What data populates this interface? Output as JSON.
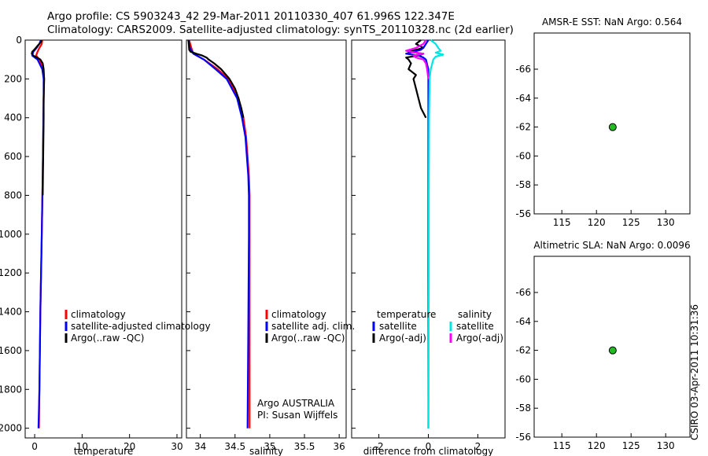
{
  "header": {
    "line1": "Argo profile: CS 5903243_42 29-Mar-2011 20110330_407 61.996S 122.347E",
    "line2": "Climatology: CARS2009. Satellite-adjusted climatology: synTS_20110328.nc (2d earlier)"
  },
  "footer": {
    "stamp": "CSIRO 03-Apr-2011 10:31:36"
  },
  "colors": {
    "climatology": "#ff0000",
    "satellite": "#0000ff",
    "argo": "#000000",
    "sal_satellite": "#00e5e5",
    "sal_argo": "#ff00ff",
    "float_marker": "#22bb22"
  },
  "chart_data": [
    {
      "id": "temperature",
      "type": "line",
      "xlabel": "temperature",
      "ylabel": "",
      "xlim": [
        -2,
        31
      ],
      "ylim": [
        2050,
        0
      ],
      "xticks": [
        0,
        10,
        20,
        30
      ],
      "yticks": [
        0,
        200,
        400,
        600,
        800,
        1000,
        1200,
        1400,
        1600,
        1800,
        2000
      ],
      "legend": {
        "placement": "lower-left",
        "entries": [
          {
            "label": "climatology",
            "color": "#ff0000"
          },
          {
            "label": "satellite-adjusted climatology",
            "color": "#0000ff"
          },
          {
            "label": "Argo(..raw -QC)",
            "color": "#000000"
          }
        ]
      },
      "series": [
        {
          "color": "#ff0000",
          "depth": [
            0,
            20,
            40,
            60,
            80,
            100,
            150,
            200,
            300,
            500,
            700,
            1000,
            1400,
            1800,
            2000
          ],
          "values": [
            1.6,
            1.5,
            1.0,
            0.6,
            0.3,
            1.0,
            1.8,
            2.0,
            1.9,
            1.8,
            1.7,
            1.5,
            1.2,
            1.0,
            0.9
          ]
        },
        {
          "color": "#0000ff",
          "depth": [
            0,
            20,
            40,
            60,
            80,
            100,
            150,
            200,
            300,
            500,
            700,
            1000,
            1400,
            1800,
            2000
          ],
          "values": [
            1.3,
            1.0,
            0.4,
            -0.3,
            -0.5,
            0.6,
            1.6,
            1.9,
            1.9,
            1.8,
            1.7,
            1.5,
            1.2,
            1.0,
            0.8
          ]
        },
        {
          "color": "#000000",
          "depth": [
            0,
            10,
            30,
            50,
            60,
            70,
            80,
            90,
            100,
            120,
            150,
            200,
            300,
            400,
            600,
            800
          ],
          "values": [
            1.5,
            1.3,
            0.6,
            -0.1,
            -0.5,
            -0.6,
            -0.3,
            0.5,
            1.2,
            1.7,
            1.9,
            2.0,
            1.9,
            1.9,
            1.8,
            1.7
          ]
        }
      ]
    },
    {
      "id": "salinity",
      "type": "line",
      "xlabel": "salinity",
      "ylabel": "",
      "xlim": [
        33.8,
        36.1
      ],
      "ylim": [
        2050,
        0
      ],
      "xticks": [
        34,
        34.5,
        35,
        35.5,
        36
      ],
      "xtick_labels": [
        "34",
        "34.5",
        "35",
        "35.5",
        "36"
      ],
      "legend": {
        "placement": "lower-left",
        "entries": [
          {
            "label": "climatology",
            "color": "#ff0000"
          },
          {
            "label": "satellite adj. clim.",
            "color": "#0000ff"
          },
          {
            "label": "Argo(..raw -QC)",
            "color": "#000000"
          }
        ]
      },
      "annotations": [
        "Argo AUSTRALIA",
        "PI: Susan Wijffels"
      ],
      "series": [
        {
          "color": "#ff0000",
          "depth": [
            0,
            40,
            70,
            100,
            150,
            200,
            300,
            400,
            500,
            600,
            700,
            800,
            1000,
            1500,
            2000
          ],
          "values": [
            33.84,
            33.87,
            33.9,
            34.05,
            34.25,
            34.4,
            34.55,
            34.62,
            34.66,
            34.68,
            34.7,
            34.71,
            34.71,
            34.71,
            34.71
          ]
        },
        {
          "color": "#0000ff",
          "depth": [
            0,
            40,
            70,
            100,
            150,
            200,
            300,
            400,
            500,
            600,
            700,
            800,
            1000,
            1500,
            2000
          ],
          "values": [
            33.83,
            33.85,
            33.9,
            34.05,
            34.22,
            34.38,
            34.53,
            34.6,
            34.65,
            34.67,
            34.69,
            34.7,
            34.7,
            34.69,
            34.68
          ]
        },
        {
          "color": "#000000",
          "depth": [
            0,
            50,
            60,
            70,
            80,
            90,
            100,
            120,
            150,
            200,
            250,
            300,
            350,
            400
          ],
          "values": [
            33.83,
            33.84,
            33.86,
            33.94,
            34.03,
            34.09,
            34.12,
            34.2,
            34.3,
            34.42,
            34.5,
            34.55,
            34.59,
            34.62
          ]
        }
      ]
    },
    {
      "id": "difference",
      "type": "line",
      "xlabel": "difference from climatology",
      "ylabel": "",
      "xlim": [
        -3.1,
        3.1
      ],
      "ylim": [
        2050,
        0
      ],
      "xticks": [
        -2,
        0,
        2
      ],
      "legend": {
        "placement": "lower-left",
        "temperature_title": "temperature",
        "salinity_title": "salinity",
        "entries": [
          {
            "group": "temperature",
            "label": "satellite",
            "color": "#0000ff"
          },
          {
            "group": "temperature",
            "label": "Argo(-adj)",
            "color": "#000000"
          },
          {
            "group": "salinity",
            "label": "satellite",
            "color": "#00e5e5"
          },
          {
            "group": "salinity",
            "label": "Argo(-adj)",
            "color": "#ff00ff"
          }
        ]
      },
      "series": [
        {
          "color": "#000000",
          "depth": [
            0,
            20,
            40,
            60,
            70,
            80,
            90,
            100,
            120,
            150,
            180,
            200,
            250,
            300,
            350,
            400
          ],
          "values": [
            -0.3,
            -0.5,
            -0.2,
            -0.8,
            -0.2,
            -0.4,
            -0.9,
            -0.8,
            -0.7,
            -0.8,
            -0.5,
            -0.6,
            -0.5,
            -0.4,
            -0.3,
            -0.1
          ]
        },
        {
          "color": "#0000ff",
          "depth": [
            0,
            20,
            40,
            50,
            60,
            70,
            80,
            90,
            100,
            150,
            200,
            400,
            800,
            1200,
            1600,
            2000
          ],
          "values": [
            0.0,
            -0.1,
            -0.2,
            -0.3,
            -0.6,
            -0.9,
            -0.4,
            -0.2,
            -0.1,
            0.0,
            0.0,
            0.0,
            0.0,
            0.0,
            0.0,
            0.0
          ]
        },
        {
          "color": "#ff00ff",
          "depth": [
            0,
            20,
            40,
            55,
            65,
            70,
            80,
            90,
            100,
            120,
            150,
            200
          ],
          "values": [
            -0.1,
            -0.2,
            -0.5,
            -0.9,
            -0.5,
            -0.2,
            -0.6,
            -0.5,
            -0.2,
            -0.1,
            -0.05,
            0.0
          ]
        },
        {
          "color": "#00e5e5",
          "depth": [
            0,
            20,
            40,
            55,
            65,
            75,
            85,
            100,
            150,
            200,
            400,
            800,
            1200,
            1600,
            2000
          ],
          "values": [
            0.1,
            0.3,
            0.4,
            0.5,
            0.3,
            0.6,
            0.3,
            0.2,
            0.1,
            0.05,
            0.03,
            0.02,
            0.02,
            0.01,
            0.0
          ]
        }
      ]
    },
    {
      "id": "sst_map",
      "type": "heatmap",
      "title": "AMSR-E SST: NaN Argo: 0.564",
      "xlim": [
        111,
        133.5
      ],
      "ylim": [
        -56,
        -68.5
      ],
      "xticks": [
        115,
        120,
        125,
        130
      ],
      "yticks": [
        -56,
        -58,
        -60,
        -62,
        -64,
        -66
      ],
      "data_ylim": [
        -56,
        -60.2
      ],
      "float_position": {
        "lon": 122.347,
        "lat": -61.996
      }
    },
    {
      "id": "sla_map",
      "type": "heatmap",
      "title": "Altimetric SLA: NaN Argo: 0.0096",
      "xlim": [
        111,
        133.5
      ],
      "ylim": [
        -56,
        -68.5
      ],
      "xticks": [
        115,
        120,
        125,
        130
      ],
      "yticks": [
        -56,
        -58,
        -60,
        -62,
        -64,
        -66
      ],
      "data_ylim": [
        -56,
        -60.2
      ],
      "float_position": {
        "lon": 122.347,
        "lat": -61.996
      }
    }
  ]
}
